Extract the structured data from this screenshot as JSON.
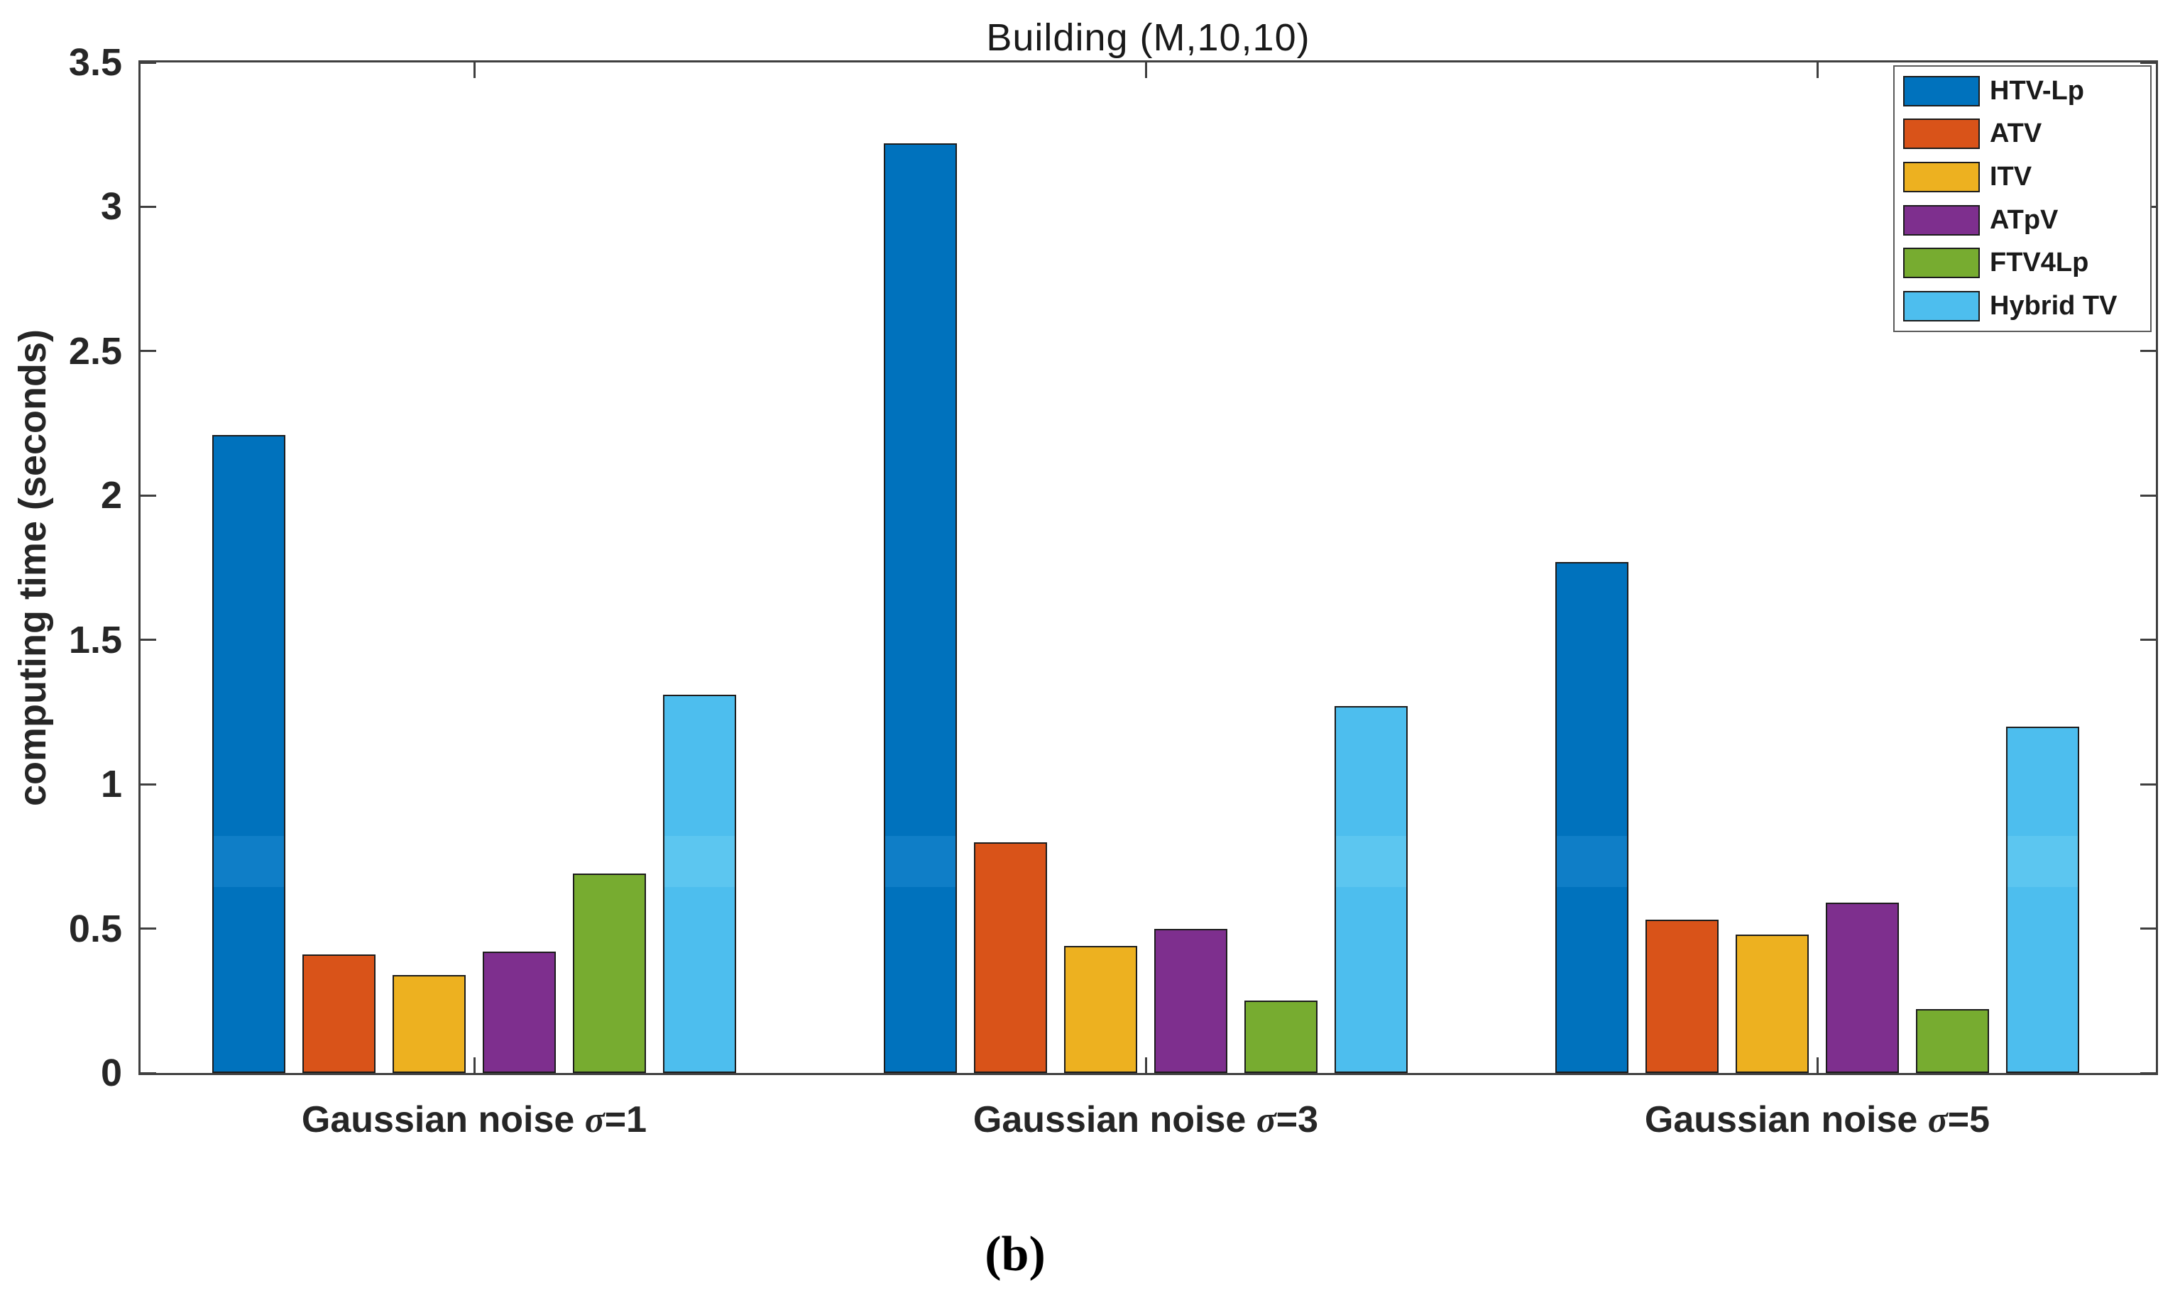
{
  "caption": "(b)",
  "chart_data": {
    "type": "bar",
    "title": "Building (M,10,10)",
    "xlabel": "",
    "ylabel": "computing time (seconds)",
    "categories": [
      "Gaussian noise σ=1",
      "Gaussian noise σ=3",
      "Gaussian noise σ=5"
    ],
    "series": [
      {
        "name": "HTV-Lp",
        "color": "#0072BD",
        "band_color": "#0f7ec7",
        "values": [
          2.21,
          3.22,
          1.77
        ]
      },
      {
        "name": "ATV",
        "color": "#D95319",
        "band_color": null,
        "values": [
          0.41,
          0.8,
          0.53
        ]
      },
      {
        "name": "ITV",
        "color": "#EDB120",
        "band_color": null,
        "values": [
          0.34,
          0.44,
          0.48
        ]
      },
      {
        "name": "ATpV",
        "color": "#7E2F8E",
        "band_color": null,
        "values": [
          0.42,
          0.5,
          0.59
        ]
      },
      {
        "name": "FTV4Lp",
        "color": "#77AC30",
        "band_color": null,
        "values": [
          0.69,
          0.25,
          0.22
        ]
      },
      {
        "name": "Hybrid TV",
        "color": "#4DBEEE",
        "band_color": "#5cc6f0",
        "values": [
          1.31,
          1.27,
          1.2
        ]
      }
    ],
    "ylim": [
      0,
      3.5
    ],
    "yticks": [
      0,
      0.5,
      1,
      1.5,
      2,
      2.5,
      3,
      3.5
    ],
    "ytick_labels": [
      "0",
      "0.5",
      "1",
      "1.5",
      "2",
      "2.5",
      "3",
      "3.5"
    ],
    "legend_position": "top-right-inside",
    "grid": false,
    "box": true
  }
}
